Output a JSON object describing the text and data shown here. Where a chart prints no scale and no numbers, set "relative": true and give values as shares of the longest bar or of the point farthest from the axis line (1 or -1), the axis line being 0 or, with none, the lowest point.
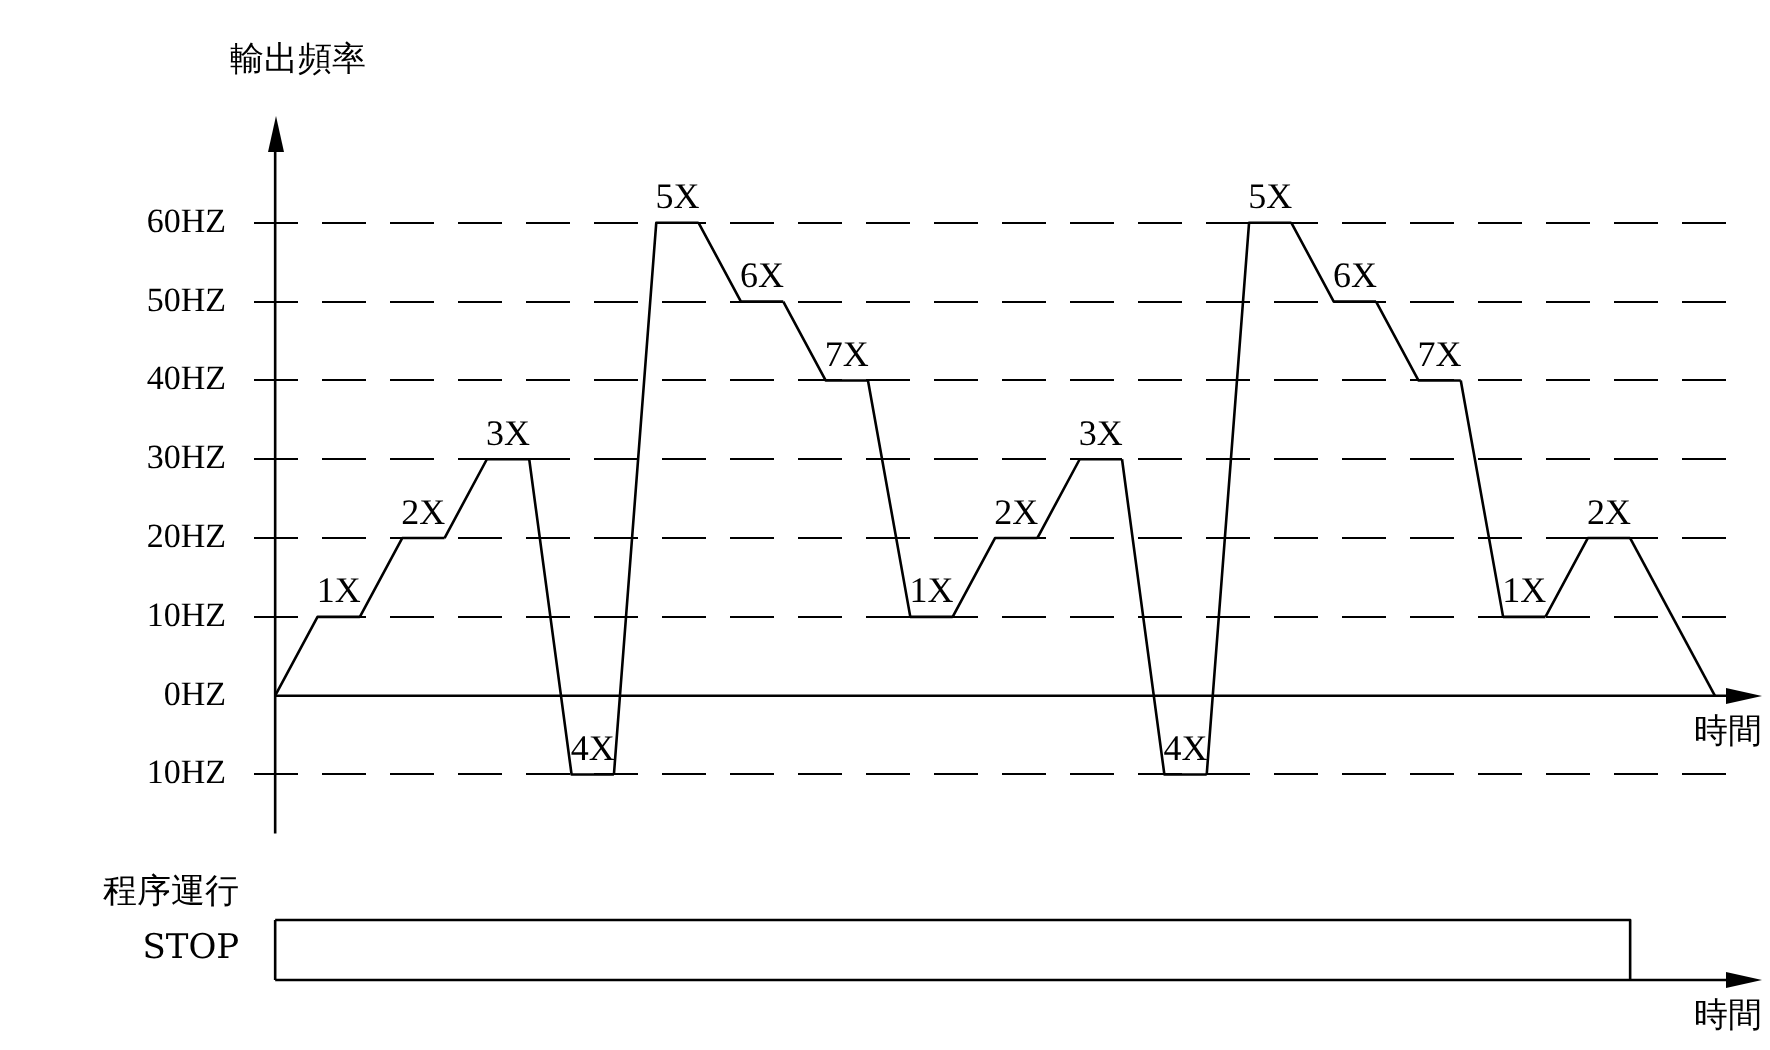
{
  "chart_data": [
    {
      "type": "line",
      "ylabel": "輸出頻率",
      "xlabel": "時間",
      "tick_labels": "y",
      "grid": "y",
      "marker": "none",
      "line_style": "solid",
      "categories": [
        null,
        null,
        null,
        null,
        null,
        null,
        null,
        null,
        null,
        null,
        null,
        null,
        null,
        null,
        null,
        null,
        null,
        null,
        null,
        null,
        null,
        null,
        null,
        null,
        null,
        null,
        null,
        null,
        null,
        null,
        null,
        null,
        null,
        null,
        null
      ],
      "series": [
        {
          "name": "1X",
          "color": "#000000",
          "values": [
            0,
            10,
            10,
            null,
            null,
            null,
            null,
            null,
            null,
            null,
            null,
            null,
            null,
            null,
            null,
            null,
            null,
            null,
            null,
            null,
            null,
            null,
            null,
            null,
            null,
            null,
            null,
            null,
            null,
            null,
            null,
            null,
            null,
            null,
            null
          ]
        },
        {
          "name": "2X",
          "color": "#000000",
          "values": [
            null,
            null,
            10,
            20,
            20,
            null,
            null,
            null,
            null,
            null,
            null,
            null,
            null,
            null,
            null,
            null,
            null,
            null,
            null,
            null,
            null,
            null,
            null,
            null,
            null,
            null,
            null,
            null,
            null,
            null,
            null,
            null,
            null,
            null,
            null
          ]
        },
        {
          "name": "3X",
          "color": "#000000",
          "values": [
            null,
            null,
            null,
            null,
            20,
            30,
            30,
            null,
            null,
            null,
            null,
            null,
            null,
            null,
            null,
            null,
            null,
            null,
            null,
            null,
            null,
            null,
            null,
            null,
            null,
            null,
            null,
            null,
            null,
            null,
            null,
            null,
            null,
            null,
            null
          ]
        },
        {
          "name": "4X",
          "color": "#000000",
          "values": [
            null,
            null,
            null,
            null,
            null,
            null,
            30,
            -10,
            -10,
            null,
            null,
            null,
            null,
            null,
            null,
            null,
            null,
            null,
            null,
            null,
            null,
            null,
            null,
            null,
            null,
            null,
            null,
            null,
            null,
            null,
            null,
            null,
            null,
            null,
            null
          ]
        },
        {
          "name": "5X",
          "color": "#000000",
          "values": [
            null,
            null,
            null,
            null,
            null,
            null,
            null,
            null,
            -10,
            60,
            60,
            null,
            null,
            null,
            null,
            null,
            null,
            null,
            null,
            null,
            null,
            null,
            null,
            null,
            null,
            null,
            null,
            null,
            null,
            null,
            null,
            null,
            null,
            null,
            null
          ]
        },
        {
          "name": "6X",
          "color": "#000000",
          "values": [
            null,
            null,
            null,
            null,
            null,
            null,
            null,
            null,
            null,
            null,
            60,
            50,
            50,
            null,
            null,
            null,
            null,
            null,
            null,
            null,
            null,
            null,
            null,
            null,
            null,
            null,
            null,
            null,
            null,
            null,
            null,
            null,
            null,
            null,
            null
          ]
        },
        {
          "name": "7X",
          "color": "#000000",
          "values": [
            null,
            null,
            null,
            null,
            null,
            null,
            null,
            null,
            null,
            null,
            null,
            null,
            50,
            40,
            40,
            null,
            null,
            null,
            null,
            null,
            null,
            null,
            null,
            null,
            null,
            null,
            null,
            null,
            null,
            null,
            null,
            null,
            null,
            null,
            null
          ]
        },
        {
          "name": "1X",
          "color": "#000000",
          "values": [
            null,
            null,
            null,
            null,
            null,
            null,
            null,
            null,
            null,
            null,
            null,
            null,
            null,
            null,
            40,
            10,
            10,
            null,
            null,
            null,
            null,
            null,
            null,
            null,
            null,
            null,
            null,
            null,
            null,
            null,
            null,
            null,
            null,
            null,
            null
          ]
        },
        {
          "name": "2X",
          "color": "#000000",
          "values": [
            null,
            null,
            null,
            null,
            null,
            null,
            null,
            null,
            null,
            null,
            null,
            null,
            null,
            null,
            null,
            null,
            10,
            20,
            20,
            null,
            null,
            null,
            null,
            null,
            null,
            null,
            null,
            null,
            null,
            null,
            null,
            null,
            null,
            null,
            null
          ]
        },
        {
          "name": "3X",
          "color": "#000000",
          "values": [
            null,
            null,
            null,
            null,
            null,
            null,
            null,
            null,
            null,
            null,
            null,
            null,
            null,
            null,
            null,
            null,
            null,
            null,
            20,
            30,
            30,
            null,
            null,
            null,
            null,
            null,
            null,
            null,
            null,
            null,
            null,
            null,
            null,
            null,
            null
          ]
        },
        {
          "name": "4X",
          "color": "#000000",
          "values": [
            null,
            null,
            null,
            null,
            null,
            null,
            null,
            null,
            null,
            null,
            null,
            null,
            null,
            null,
            null,
            null,
            null,
            null,
            null,
            null,
            30,
            -10,
            -10,
            null,
            null,
            null,
            null,
            null,
            null,
            null,
            null,
            null,
            null,
            null,
            null
          ]
        },
        {
          "name": "5X",
          "color": "#000000",
          "values": [
            null,
            null,
            null,
            null,
            null,
            null,
            null,
            null,
            null,
            null,
            null,
            null,
            null,
            null,
            null,
            null,
            null,
            null,
            null,
            null,
            null,
            null,
            -10,
            60,
            60,
            null,
            null,
            null,
            null,
            null,
            null,
            null,
            null,
            null,
            null
          ]
        },
        {
          "name": "6X",
          "color": "#000000",
          "values": [
            null,
            null,
            null,
            null,
            null,
            null,
            null,
            null,
            null,
            null,
            null,
            null,
            null,
            null,
            null,
            null,
            null,
            null,
            null,
            null,
            null,
            null,
            null,
            null,
            60,
            50,
            50,
            null,
            null,
            null,
            null,
            null,
            null,
            null,
            null
          ]
        },
        {
          "name": "7X",
          "color": "#000000",
          "values": [
            null,
            null,
            null,
            null,
            null,
            null,
            null,
            null,
            null,
            null,
            null,
            null,
            null,
            null,
            null,
            null,
            null,
            null,
            null,
            null,
            null,
            null,
            null,
            null,
            null,
            null,
            50,
            40,
            40,
            null,
            null,
            null,
            null,
            null,
            null
          ]
        },
        {
          "name": "1X",
          "color": "#000000",
          "values": [
            null,
            null,
            null,
            null,
            null,
            null,
            null,
            null,
            null,
            null,
            null,
            null,
            null,
            null,
            null,
            null,
            null,
            null,
            null,
            null,
            null,
            null,
            null,
            null,
            null,
            null,
            null,
            null,
            40,
            10,
            10,
            null,
            null,
            null,
            null
          ]
        },
        {
          "name": "2X",
          "color": "#000000",
          "values": [
            null,
            null,
            null,
            null,
            null,
            null,
            null,
            null,
            null,
            null,
            null,
            null,
            null,
            null,
            null,
            null,
            null,
            null,
            null,
            null,
            null,
            null,
            null,
            null,
            null,
            null,
            null,
            null,
            null,
            null,
            10,
            20,
            20,
            null,
            null
          ]
        },
        {
          "color": "#000000",
          "values": [
            null,
            null,
            null,
            null,
            null,
            null,
            null,
            null,
            null,
            null,
            null,
            null,
            null,
            null,
            null,
            null,
            null,
            null,
            null,
            null,
            null,
            null,
            null,
            null,
            null,
            null,
            null,
            null,
            null,
            null,
            null,
            null,
            20,
            null,
            0
          ]
        }
      ],
      "ylim": [
        -17.5,
        70
      ],
      "yticks": [
        {
          "value": -10,
          "label": "10HZ"
        },
        {
          "value": 0,
          "label": "0HZ"
        },
        {
          "value": 10,
          "label": "10HZ"
        },
        {
          "value": 20,
          "label": "20HZ"
        },
        {
          "value": 30,
          "label": "30HZ"
        },
        {
          "value": 40,
          "label": "40HZ"
        },
        {
          "value": 50,
          "label": "50HZ"
        },
        {
          "value": 60,
          "label": "60HZ"
        }
      ]
    },
    {
      "type": "step",
      "xlabel": "時間",
      "tick_labels": false,
      "marker": "none",
      "relative": true,
      "annotations": [
        "程序運行",
        "STOP"
      ],
      "categories": [
        null,
        null,
        null,
        null,
        null,
        null,
        null,
        null,
        null,
        null,
        null,
        null,
        null,
        null,
        null,
        null,
        null,
        null,
        null,
        null,
        null,
        null,
        null,
        null,
        null,
        null,
        null,
        null,
        null,
        null,
        null,
        null,
        null,
        null,
        null
      ],
      "series": [
        {
          "color": "#000000",
          "values": [
            1,
            1,
            1,
            1,
            1,
            1,
            1,
            1,
            1,
            1,
            1,
            1,
            1,
            1,
            1,
            1,
            1,
            1,
            1,
            1,
            1,
            1,
            1,
            1,
            1,
            1,
            1,
            1,
            1,
            1,
            1,
            1,
            0,
            null,
            null
          ]
        }
      ]
    }
  ]
}
